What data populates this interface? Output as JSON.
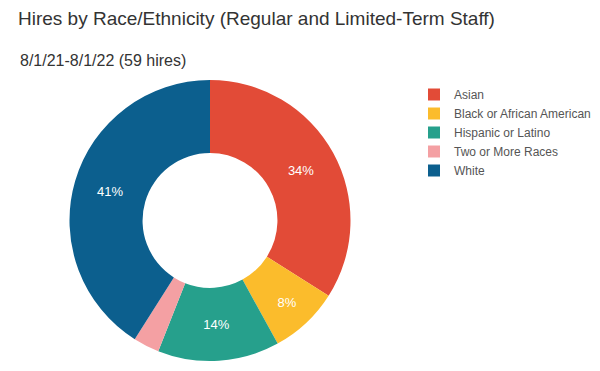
{
  "chart_data": {
    "type": "pie",
    "title": "Hires by Race/Ethnicity (Regular and Limited-Term Staff)",
    "subtitle": "8/1/21-8/1/22 (59 hires)",
    "categories": [
      "Asian",
      "Black or African American",
      "Hispanic or Latino",
      "Two or More Races",
      "White"
    ],
    "values": [
      34,
      8,
      14,
      3,
      41
    ],
    "value_labels": [
      "34%",
      "8%",
      "14%",
      null,
      "41%"
    ],
    "colors": [
      "#e24b37",
      "#fbbc2c",
      "#26a08c",
      "#f4a0a3",
      "#0c5f8e"
    ],
    "data_labels": true,
    "legend": "top right"
  }
}
